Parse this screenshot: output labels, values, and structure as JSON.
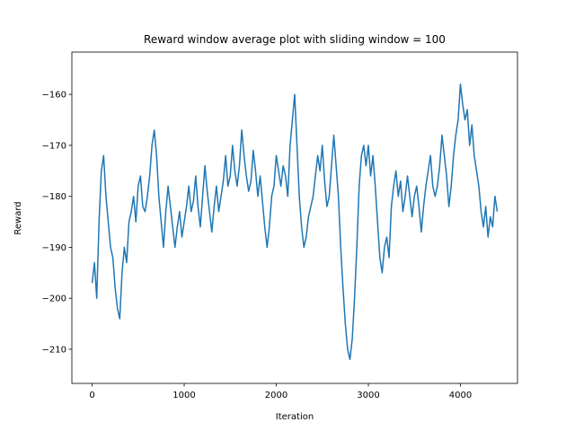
{
  "chart_data": {
    "type": "line",
    "title": "Reward window average plot with sliding window = 100",
    "x_label": "Iteration",
    "y_label": "Reward",
    "x": [
      0,
      25,
      50,
      75,
      100,
      125,
      150,
      175,
      200,
      225,
      250,
      275,
      300,
      325,
      350,
      375,
      400,
      425,
      450,
      475,
      500,
      525,
      550,
      575,
      600,
      625,
      650,
      675,
      700,
      725,
      750,
      775,
      800,
      825,
      850,
      875,
      900,
      925,
      950,
      975,
      1000,
      1025,
      1050,
      1075,
      1100,
      1125,
      1150,
      1175,
      1200,
      1225,
      1250,
      1275,
      1300,
      1325,
      1350,
      1375,
      1400,
      1425,
      1450,
      1475,
      1500,
      1525,
      1550,
      1575,
      1600,
      1625,
      1650,
      1675,
      1700,
      1725,
      1750,
      1775,
      1800,
      1825,
      1850,
      1875,
      1900,
      1925,
      1950,
      1975,
      2000,
      2025,
      2050,
      2075,
      2100,
      2125,
      2150,
      2175,
      2200,
      2225,
      2250,
      2275,
      2300,
      2325,
      2350,
      2375,
      2400,
      2425,
      2450,
      2475,
      2500,
      2525,
      2550,
      2575,
      2600,
      2625,
      2650,
      2675,
      2700,
      2725,
      2750,
      2775,
      2800,
      2825,
      2850,
      2875,
      2900,
      2925,
      2950,
      2975,
      3000,
      3025,
      3050,
      3075,
      3100,
      3125,
      3150,
      3175,
      3200,
      3225,
      3250,
      3275,
      3300,
      3325,
      3350,
      3375,
      3400,
      3425,
      3450,
      3475,
      3500,
      3525,
      3550,
      3575,
      3600,
      3625,
      3650,
      3675,
      3700,
      3725,
      3750,
      3775,
      3800,
      3825,
      3850,
      3875,
      3900,
      3925,
      3950,
      3975,
      4000,
      4025,
      4050,
      4075,
      4100,
      4125,
      4150,
      4175,
      4200,
      4225,
      4250,
      4275,
      4300,
      4325,
      4350,
      4375,
      4400
    ],
    "series": [
      {
        "color": "#1f77b4",
        "values": [
          -197,
          -193,
          -200,
          -185,
          -175,
          -172,
          -180,
          -185,
          -190,
          -192,
          -198,
          -202,
          -204,
          -195,
          -190,
          -193,
          -185,
          -183,
          -180,
          -185,
          -178,
          -176,
          -182,
          -183,
          -180,
          -176,
          -170,
          -167,
          -172,
          -180,
          -185,
          -190,
          -183,
          -178,
          -182,
          -186,
          -190,
          -186,
          -183,
          -188,
          -185,
          -182,
          -178,
          -183,
          -181,
          -176,
          -182,
          -186,
          -180,
          -174,
          -179,
          -183,
          -187,
          -182,
          -178,
          -183,
          -180,
          -177,
          -172,
          -178,
          -176,
          -170,
          -175,
          -178,
          -174,
          -167,
          -172,
          -176,
          -179,
          -177,
          -171,
          -175,
          -180,
          -176,
          -181,
          -186,
          -190,
          -186,
          -180,
          -178,
          -172,
          -175,
          -178,
          -174,
          -176,
          -180,
          -170,
          -165,
          -160,
          -170,
          -180,
          -186,
          -190,
          -188,
          -184,
          -182,
          -180,
          -176,
          -172,
          -175,
          -170,
          -177,
          -182,
          -180,
          -174,
          -168,
          -174,
          -180,
          -190,
          -198,
          -205,
          -210,
          -212,
          -208,
          -200,
          -190,
          -178,
          -172,
          -170,
          -174,
          -170,
          -176,
          -172,
          -178,
          -185,
          -192,
          -195,
          -190,
          -188,
          -192,
          -182,
          -178,
          -175,
          -180,
          -177,
          -183,
          -180,
          -176,
          -180,
          -184,
          -180,
          -178,
          -182,
          -187,
          -182,
          -178,
          -175,
          -172,
          -178,
          -180,
          -178,
          -174,
          -168,
          -172,
          -176,
          -182,
          -178,
          -172,
          -168,
          -165,
          -158,
          -162,
          -165,
          -163,
          -170,
          -166,
          -172,
          -175,
          -178,
          -183,
          -186,
          -182,
          -188,
          -184,
          -186,
          -180,
          -183
        ]
      }
    ],
    "xlim": [
      -220,
      4620
    ],
    "ylim": [
      -216.7,
      -151.7
    ],
    "xticks": [
      0,
      1000,
      2000,
      3000,
      4000
    ],
    "yticks": [
      {
        "value": -210,
        "label": "−210"
      },
      {
        "value": -200,
        "label": "−200"
      },
      {
        "value": -190,
        "label": "−190"
      },
      {
        "value": -180,
        "label": "−180"
      },
      {
        "value": -170,
        "label": "−170"
      },
      {
        "value": -160,
        "label": "−160"
      }
    ]
  }
}
